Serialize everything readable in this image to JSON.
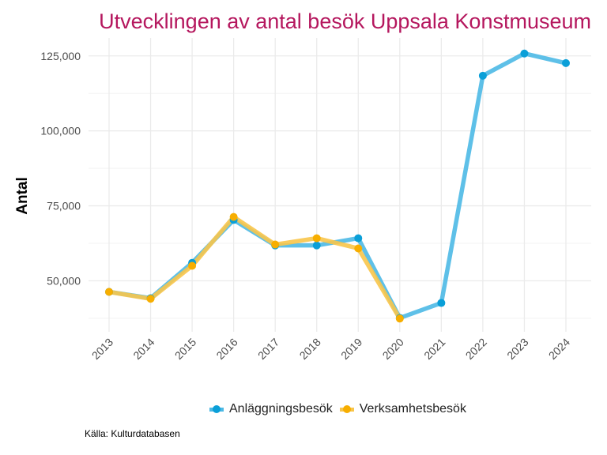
{
  "chart_data": {
    "type": "line",
    "title": "Utvecklingen av antal besök Uppsala Konstmuseum",
    "xlabel": "",
    "ylabel": "Antal",
    "caption": "Källa: Kulturdatabasen",
    "x": [
      "2013",
      "2014",
      "2015",
      "2016",
      "2017",
      "2018",
      "2019",
      "2020",
      "2021",
      "2022",
      "2023",
      "2024"
    ],
    "ylim": [
      33000,
      131000
    ],
    "yticks": [
      50000,
      75000,
      100000,
      125000
    ],
    "ytick_labels": [
      "50,000",
      "75,000",
      "100,000",
      "125,000"
    ],
    "grid": true,
    "legend_position": "bottom",
    "series": [
      {
        "name": "Anläggningsbesök",
        "color": "#0a9fd8",
        "line_color": "#4cb9e5",
        "values": [
          46300,
          44200,
          56000,
          70300,
          61800,
          61800,
          64200,
          37600,
          42600,
          118400,
          125800,
          122600
        ]
      },
      {
        "name": "Verksamhetsbesök",
        "color": "#f7ae00",
        "line_color": "#f8c54a",
        "values": [
          46300,
          44000,
          55000,
          71300,
          62100,
          64200,
          60800,
          37400,
          null,
          null,
          null,
          null
        ]
      }
    ]
  }
}
